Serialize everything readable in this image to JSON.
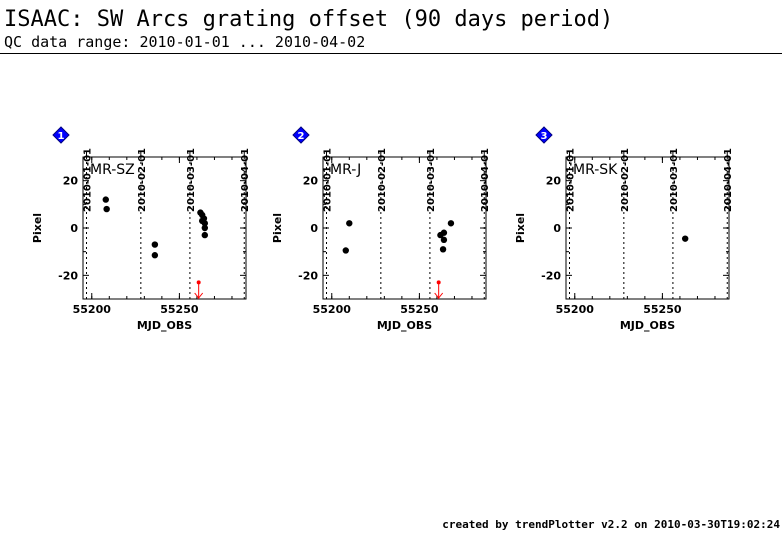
{
  "header": {
    "title": "ISAAC: SW Arcs grating offset (90 days period)",
    "subtitle": "QC data range: 2010-01-01 ... 2010-04-02"
  },
  "footer": {
    "credit": "created by trendPlotter v2.2 on 2010-03-30T19:02:24"
  },
  "colors": {
    "marker": "#0000ff",
    "outlier": "#ff0000",
    "data": "#000000"
  },
  "chart_data": [
    {
      "type": "scatter",
      "index_label": "1",
      "panel_label": "MR-SZ",
      "xlabel": "MJD_OBS",
      "ylabel": "Pixel",
      "xlim": [
        55195,
        55288
      ],
      "ylim": [
        -30,
        30
      ],
      "x_ticks": [
        "55200",
        "55250"
      ],
      "x_tick_values": [
        55200,
        55250
      ],
      "y_ticks": [
        "20",
        "0",
        "-20"
      ],
      "y_tick_values": [
        20,
        0,
        -20
      ],
      "date_ticks": [
        "2010-01-01",
        "2010-02-01",
        "2010-03-01",
        "2010-04-01"
      ],
      "date_tick_values": [
        55197,
        55228,
        55256,
        55287
      ],
      "points": [
        {
          "x": 55208,
          "y": 12
        },
        {
          "x": 55208.5,
          "y": 8
        },
        {
          "x": 55236,
          "y": -7
        },
        {
          "x": 55236,
          "y": -11.5
        },
        {
          "x": 55262,
          "y": 6.5
        },
        {
          "x": 55263,
          "y": 5.5
        },
        {
          "x": 55263,
          "y": 3
        },
        {
          "x": 55264,
          "y": 4
        },
        {
          "x": 55264.5,
          "y": 2
        },
        {
          "x": 55264.5,
          "y": 0
        },
        {
          "x": 55264.5,
          "y": -3
        }
      ],
      "outliers": [
        {
          "x": 55261,
          "y": -23,
          "direction": "down"
        }
      ]
    },
    {
      "type": "scatter",
      "index_label": "2",
      "panel_label": "MR-J",
      "xlabel": "MJD_OBS",
      "ylabel": "Pixel",
      "xlim": [
        55195,
        55288
      ],
      "ylim": [
        -30,
        30
      ],
      "x_ticks": [
        "55200",
        "55250"
      ],
      "x_tick_values": [
        55200,
        55250
      ],
      "y_ticks": [
        "20",
        "0",
        "-20"
      ],
      "y_tick_values": [
        20,
        0,
        -20
      ],
      "date_ticks": [
        "2010-01-01",
        "2010-02-01",
        "2010-03-01",
        "2010-04-01"
      ],
      "date_tick_values": [
        55197,
        55228,
        55256,
        55287
      ],
      "points": [
        {
          "x": 55208,
          "y": -9.5
        },
        {
          "x": 55210,
          "y": 2
        },
        {
          "x": 55262,
          "y": -3
        },
        {
          "x": 55264,
          "y": -2
        },
        {
          "x": 55264,
          "y": -5
        },
        {
          "x": 55263.5,
          "y": -9
        },
        {
          "x": 55268,
          "y": 2
        }
      ],
      "outliers": [
        {
          "x": 55261,
          "y": -23,
          "direction": "down"
        }
      ]
    },
    {
      "type": "scatter",
      "index_label": "3",
      "panel_label": "MR-SK",
      "xlabel": "MJD_OBS",
      "ylabel": "Pixel",
      "xlim": [
        55195,
        55288
      ],
      "ylim": [
        -30,
        30
      ],
      "x_ticks": [
        "55200",
        "55250"
      ],
      "x_tick_values": [
        55200,
        55250
      ],
      "y_ticks": [
        "20",
        "0",
        "-20"
      ],
      "y_tick_values": [
        20,
        0,
        -20
      ],
      "date_ticks": [
        "2010-01-01",
        "2010-02-01",
        "2010-03-01",
        "2010-04-01"
      ],
      "date_tick_values": [
        55197,
        55228,
        55256,
        55287
      ],
      "points": [
        {
          "x": 55263,
          "y": -4.5
        }
      ],
      "outliers": []
    }
  ]
}
